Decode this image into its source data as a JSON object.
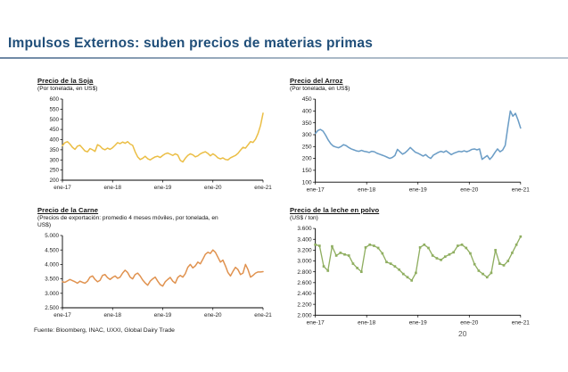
{
  "slide": {
    "title": "Impulsos Externos: suben precios de materias primas",
    "footer_source": "Fuente: Bloomberg, INAC, UXXI, Global Dairy Trade",
    "page_number": "20"
  },
  "colors": {
    "title_navy": "#1F4E79",
    "divider_gray_blue": "#A9B8C6",
    "soja_line": "#EBBE45",
    "arroz_line": "#6B9DC6",
    "carne_line": "#E0924F",
    "leche_line": "#8FAE60",
    "axis": "#000000"
  },
  "chart_data": [
    {
      "type": "line",
      "title": "Precio de la Soja",
      "subtitle": "(Por tonelada, en US$)",
      "color": "#EBBE45",
      "markers": false,
      "ylim": [
        200,
        600
      ],
      "ytick_values": [
        600,
        550,
        500,
        450,
        400,
        350,
        300,
        250,
        200
      ],
      "ytick_labels": [
        "600",
        "550",
        "500",
        "450",
        "400",
        "350",
        "300",
        "250",
        "200"
      ],
      "x_labels": [
        "ene-17",
        "ene-18",
        "ene-19",
        "ene-20",
        "ene-21"
      ],
      "grid": false,
      "legend": "none",
      "values": [
        370,
        385,
        390,
        378,
        362,
        352,
        368,
        372,
        358,
        344,
        340,
        356,
        350,
        342,
        375,
        368,
        355,
        350,
        358,
        352,
        360,
        372,
        385,
        380,
        388,
        382,
        390,
        378,
        372,
        340,
        315,
        302,
        308,
        318,
        306,
        300,
        308,
        315,
        318,
        312,
        322,
        330,
        334,
        328,
        322,
        330,
        324,
        298,
        290,
        308,
        322,
        330,
        325,
        315,
        320,
        330,
        336,
        340,
        332,
        320,
        330,
        322,
        310,
        305,
        310,
        302,
        300,
        310,
        316,
        322,
        332,
        348,
        362,
        358,
        374,
        390,
        386,
        402,
        430,
        470,
        530
      ]
    },
    {
      "type": "line",
      "title": "Precio del Arroz",
      "subtitle": "(Por tonelada, en US$)",
      "color": "#6B9DC6",
      "markers": false,
      "ylim": [
        100,
        450
      ],
      "ytick_values": [
        450,
        400,
        350,
        300,
        250,
        200,
        150,
        100
      ],
      "ytick_labels": [
        "450",
        "400",
        "350",
        "300",
        "250",
        "200",
        "150",
        "100"
      ],
      "x_labels": [
        "ene-17",
        "ene-18",
        "ene-19",
        "ene-20",
        "ene-21"
      ],
      "grid": false,
      "legend": "none",
      "values": [
        305,
        318,
        322,
        315,
        298,
        278,
        262,
        252,
        248,
        245,
        250,
        258,
        254,
        246,
        240,
        236,
        232,
        230,
        234,
        230,
        228,
        225,
        230,
        228,
        222,
        218,
        214,
        210,
        205,
        200,
        204,
        212,
        238,
        228,
        218,
        224,
        234,
        246,
        236,
        226,
        222,
        216,
        210,
        216,
        206,
        200,
        214,
        220,
        226,
        230,
        226,
        232,
        224,
        216,
        222,
        226,
        230,
        228,
        232,
        228,
        232,
        238,
        240,
        236,
        240,
        196,
        204,
        212,
        196,
        208,
        225,
        240,
        228,
        235,
        255,
        330,
        400,
        378,
        390,
        362,
        328
      ]
    },
    {
      "type": "line",
      "title": "Precio de la Carne",
      "subtitle": "(Precios de exportación: promedio 4 meses móviles, por tonelada, en US$)",
      "color": "#E0924F",
      "markers": false,
      "ylim": [
        2500,
        5000
      ],
      "ytick_values": [
        5000,
        4500,
        4000,
        3500,
        3000,
        2500
      ],
      "ytick_labels": [
        "5.000",
        "4.500",
        "4.000",
        "3.500",
        "3.000",
        "2.500"
      ],
      "x_labels": [
        "ene-17",
        "ene-18",
        "ene-19",
        "ene-20",
        "ene-21"
      ],
      "grid": false,
      "legend": "none",
      "values": [
        3400,
        3380,
        3430,
        3480,
        3440,
        3400,
        3350,
        3420,
        3380,
        3350,
        3420,
        3560,
        3600,
        3480,
        3400,
        3450,
        3620,
        3650,
        3540,
        3480,
        3550,
        3600,
        3520,
        3560,
        3700,
        3800,
        3720,
        3560,
        3500,
        3650,
        3700,
        3600,
        3460,
        3360,
        3280,
        3420,
        3500,
        3560,
        3420,
        3300,
        3250,
        3400,
        3480,
        3550,
        3420,
        3350,
        3550,
        3620,
        3560,
        3680,
        3900,
        4000,
        3880,
        3950,
        4080,
        4020,
        4180,
        4350,
        4420,
        4380,
        4500,
        4420,
        4250,
        4080,
        4150,
        3950,
        3720,
        3600,
        3760,
        3900,
        3820,
        3650,
        3700,
        4000,
        3820,
        3560,
        3620,
        3700,
        3740,
        3740,
        3750
      ]
    },
    {
      "type": "line",
      "title": "Precio de la leche en polvo",
      "subtitle": "(US$ / ton)",
      "color": "#8FAE60",
      "markers": true,
      "ylim": [
        2000,
        3600
      ],
      "ytick_values": [
        3600,
        3400,
        3200,
        3000,
        2800,
        2600,
        2400,
        2200,
        2000
      ],
      "ytick_labels": [
        "3.600",
        "3.400",
        "3.200",
        "3.000",
        "2.800",
        "2.600",
        "2.400",
        "2.200",
        "2.000"
      ],
      "x_labels": [
        "ene-17",
        "ene-18",
        "ene-19",
        "ene-20",
        "ene-21"
      ],
      "grid": false,
      "legend": "none",
      "values": [
        3300,
        3280,
        2900,
        2820,
        3270,
        3100,
        3150,
        3120,
        3100,
        2950,
        2870,
        2800,
        3250,
        3300,
        3280,
        3240,
        3140,
        2980,
        2950,
        2900,
        2840,
        2760,
        2700,
        2640,
        2780,
        3250,
        3300,
        3240,
        3100,
        3050,
        3020,
        3080,
        3120,
        3160,
        3280,
        3300,
        3240,
        3140,
        2940,
        2820,
        2760,
        2700,
        2780,
        3200,
        2950,
        2920,
        3000,
        3150,
        3300,
        3450
      ]
    }
  ]
}
